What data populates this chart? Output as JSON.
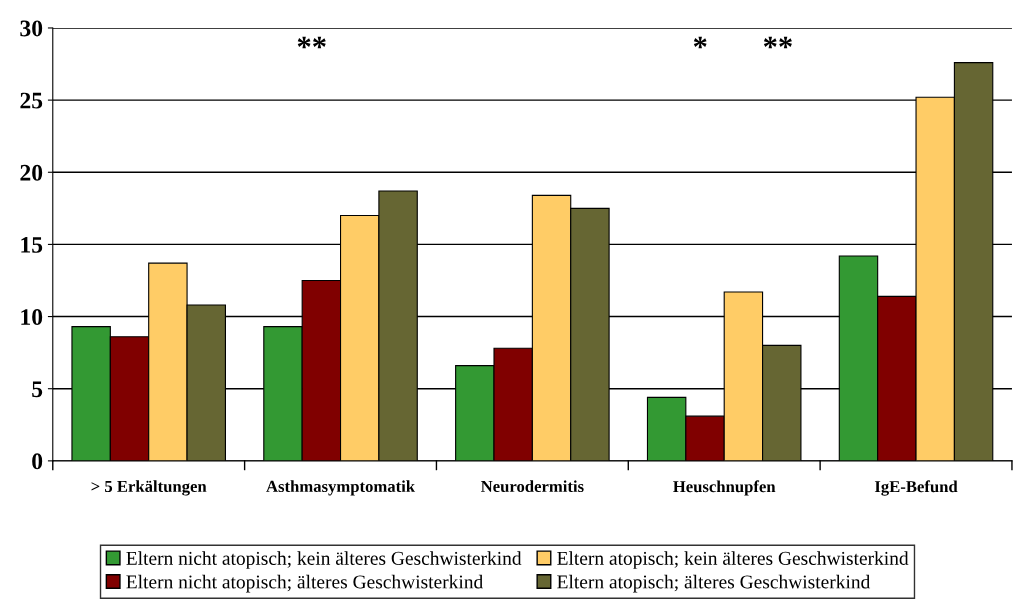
{
  "chart_data": {
    "type": "bar",
    "categories": [
      "> 5 Erkältungen",
      "Asthmasymptomatik",
      "Neurodermitis",
      "Heuschnupfen",
      "IgE-Befund"
    ],
    "series": [
      {
        "name": "Eltern nicht atopisch; kein älteres Geschwisterkind",
        "color": "#339933",
        "values": [
          9.3,
          9.3,
          6.6,
          4.4,
          14.2
        ]
      },
      {
        "name": "Eltern nicht atopisch; älteres Geschwisterkind",
        "color": "#800000",
        "values": [
          8.6,
          12.5,
          7.8,
          3.1,
          11.4
        ]
      },
      {
        "name": "Eltern atopisch; kein älteres Geschwisterkind",
        "color": "#ffcc66",
        "values": [
          13.7,
          17.0,
          18.4,
          11.7,
          25.2
        ]
      },
      {
        "name": "Eltern atopisch; älteres Geschwisterkind",
        "color": "#666633",
        "values": [
          10.8,
          18.7,
          17.5,
          8.0,
          27.6
        ]
      }
    ],
    "ylim": [
      0,
      30
    ],
    "yticks": [
      0,
      5,
      10,
      15,
      20,
      25,
      30
    ],
    "grid": "y",
    "legend": "bottom",
    "annotations": [
      "**",
      "*",
      "**"
    ]
  }
}
